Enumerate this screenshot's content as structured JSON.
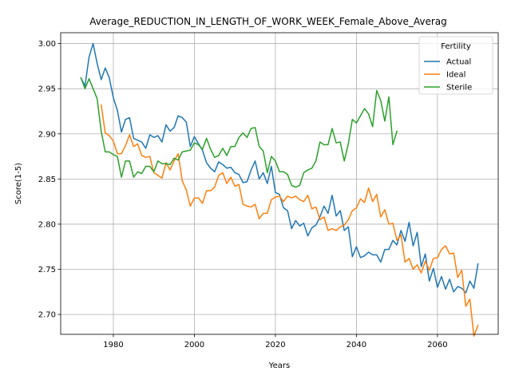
{
  "chart_data": {
    "type": "line",
    "title": "Average_REDUCTION_IN_LENGTH_OF_WORK_WEEK_Female_Above_Averag",
    "xlabel": "Years",
    "ylabel": "Score(1-5)",
    "xlim": [
      1967,
      2075
    ],
    "ylim": [
      2.678,
      3.012
    ],
    "x_ticks": [
      1980,
      2000,
      2020,
      2040,
      2060
    ],
    "y_ticks": [
      2.7,
      2.75,
      2.8,
      2.85,
      2.9,
      2.95,
      3.0
    ],
    "x_tick_labels": [
      "1980",
      "2000",
      "2020",
      "2040",
      "2060"
    ],
    "y_tick_labels": [
      "2.70",
      "2.75",
      "2.80",
      "2.85",
      "2.90",
      "2.95",
      "3.00"
    ],
    "grid": true,
    "legend": {
      "title": "Fertility",
      "position": "top-right"
    },
    "series": [
      {
        "name": "Actual",
        "color": "#1f77b4",
        "x_start": 1972,
        "values": [
          2.962,
          2.953,
          2.985,
          3.0,
          2.978,
          2.96,
          2.973,
          2.962,
          2.94,
          2.926,
          2.902,
          2.916,
          2.918,
          2.895,
          2.893,
          2.891,
          2.884,
          2.899,
          2.896,
          2.898,
          2.891,
          2.91,
          2.903,
          2.907,
          2.92,
          2.918,
          2.913,
          2.886,
          2.897,
          2.889,
          2.882,
          2.868,
          2.862,
          2.858,
          2.869,
          2.866,
          2.862,
          2.863,
          2.857,
          2.855,
          2.846,
          2.847,
          2.86,
          2.87,
          2.85,
          2.857,
          2.845,
          2.864,
          2.835,
          2.833,
          2.818,
          2.815,
          2.795,
          2.804,
          2.798,
          2.801,
          2.787,
          2.796,
          2.799,
          2.808,
          2.82,
          2.812,
          2.832,
          2.809,
          2.815,
          2.793,
          2.797,
          2.764,
          2.775,
          2.763,
          2.765,
          2.769,
          2.766,
          2.766,
          2.758,
          2.772,
          2.772,
          2.782,
          2.777,
          2.793,
          2.781,
          2.802,
          2.776,
          2.791,
          2.753,
          2.767,
          2.737,
          2.751,
          2.73,
          2.742,
          2.728,
          2.739,
          2.725,
          2.731,
          2.729,
          2.724,
          2.737,
          2.729,
          2.756
        ]
      },
      {
        "name": "Ideal",
        "color": "#ff7f0e",
        "x_start": 1977,
        "values": [
          2.932,
          2.901,
          2.898,
          2.892,
          2.878,
          2.878,
          2.887,
          2.899,
          2.886,
          2.889,
          2.876,
          2.874,
          2.875,
          2.857,
          2.854,
          2.851,
          2.868,
          2.86,
          2.87,
          2.878,
          2.848,
          2.838,
          2.82,
          2.829,
          2.829,
          2.823,
          2.837,
          2.837,
          2.841,
          2.854,
          2.857,
          2.845,
          2.852,
          2.842,
          2.844,
          2.822,
          2.82,
          2.819,
          2.822,
          2.806,
          2.812,
          2.812,
          2.827,
          2.83,
          2.831,
          2.825,
          2.831,
          2.829,
          2.831,
          2.827,
          2.825,
          2.832,
          2.817,
          2.819,
          2.805,
          2.808,
          2.793,
          2.795,
          2.793,
          2.797,
          2.799,
          2.805,
          2.815,
          2.818,
          2.828,
          2.824,
          2.84,
          2.825,
          2.833,
          2.808,
          2.816,
          2.8,
          2.801,
          2.782,
          2.788,
          2.758,
          2.762,
          2.75,
          2.755,
          2.746,
          2.759,
          2.749,
          2.762,
          2.763,
          2.772,
          2.776,
          2.767,
          2.768,
          2.741,
          2.749,
          2.709,
          2.717,
          2.676,
          2.688
        ]
      },
      {
        "name": "Sterile",
        "color": "#2ca02c",
        "x_start": 1972,
        "values": [
          2.962,
          2.95,
          2.961,
          2.95,
          2.939,
          2.903,
          2.88,
          2.88,
          2.877,
          2.875,
          2.852,
          2.87,
          2.87,
          2.852,
          2.858,
          2.856,
          2.864,
          2.864,
          2.858,
          2.87,
          2.867,
          2.867,
          2.866,
          2.873,
          2.871,
          2.88,
          2.881,
          2.882,
          2.89,
          2.888,
          2.883,
          2.895,
          2.883,
          2.874,
          2.876,
          2.884,
          2.876,
          2.886,
          2.886,
          2.896,
          2.901,
          2.896,
          2.906,
          2.907,
          2.886,
          2.881,
          2.857,
          2.875,
          2.87,
          2.858,
          2.858,
          2.855,
          2.843,
          2.841,
          2.843,
          2.857,
          2.86,
          2.862,
          2.87,
          2.891,
          2.888,
          2.888,
          2.906,
          2.89,
          2.891,
          2.87,
          2.889,
          2.916,
          2.912,
          2.92,
          2.928,
          2.922,
          2.908,
          2.948,
          2.937,
          2.914,
          2.941,
          2.888,
          2.903
        ]
      }
    ]
  }
}
